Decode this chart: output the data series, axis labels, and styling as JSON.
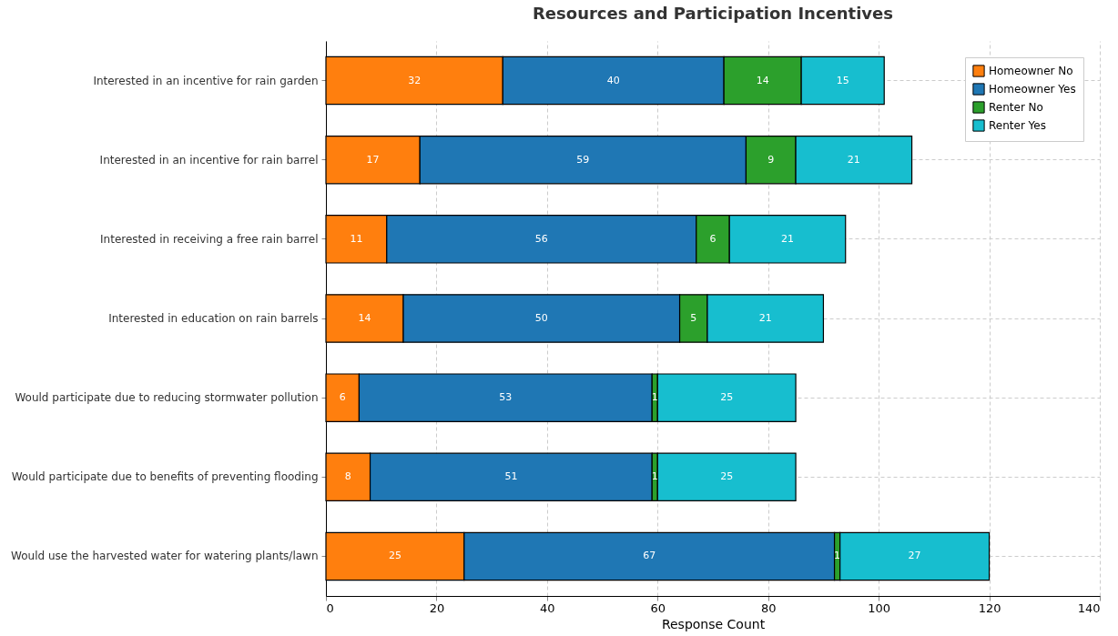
{
  "chart_data": {
    "type": "bar",
    "title": "Resources and Participation Incentives",
    "xlabel": "Response Count",
    "orientation": "horizontal",
    "stacked": true,
    "data_labels": true,
    "grid": true,
    "legend": "top right",
    "categories": [
      "Interested in an incentive for rain garden",
      "Interested in an incentive for rain barrel",
      "Interested in receiving a free rain barrel",
      "Interested in education on rain barrels",
      "Would participate due to reducing stormwater pollution",
      "Would participate due to benefits of preventing flooding",
      "Would use the harvested water for watering plants/lawn"
    ],
    "series": [
      {
        "name": "Homeowner No",
        "color": "#ff7f0e",
        "values": [
          32,
          17,
          11,
          14,
          6,
          8,
          25
        ]
      },
      {
        "name": "Homeowner Yes",
        "color": "#1f77b4",
        "values": [
          40,
          59,
          56,
          50,
          53,
          51,
          67
        ]
      },
      {
        "name": "Renter No",
        "color": "#2ca02c",
        "values": [
          14,
          9,
          6,
          5,
          1,
          1,
          1
        ]
      },
      {
        "name": "Renter Yes",
        "color": "#17becf",
        "values": [
          15,
          21,
          21,
          21,
          25,
          25,
          27
        ]
      }
    ],
    "xlim": [
      0,
      140
    ],
    "xticks": [
      0,
      20,
      40,
      60,
      80,
      100,
      120,
      140
    ]
  }
}
